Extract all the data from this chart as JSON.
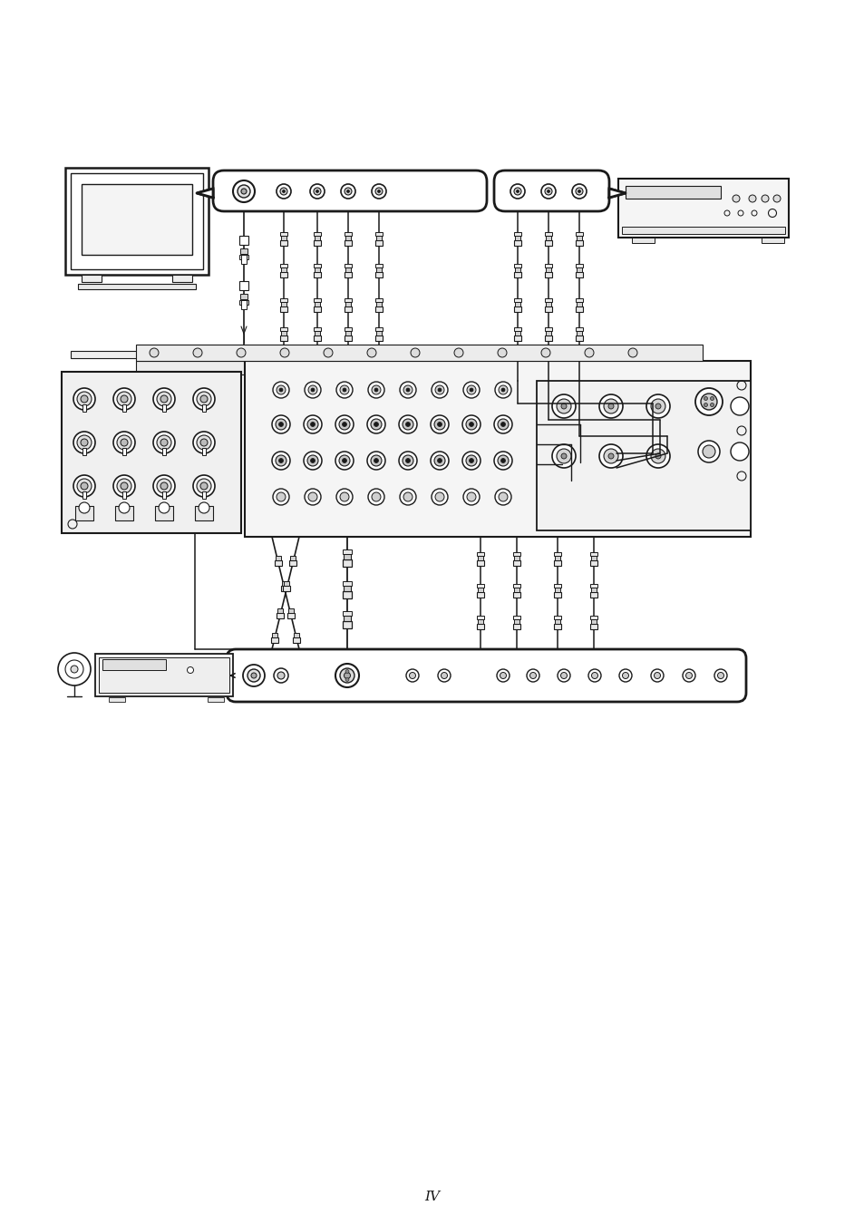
{
  "bg_color": "#ffffff",
  "line_color": "#1a1a1a",
  "page_number": "IV",
  "lw": 1.0,
  "figsize": [
    9.54,
    13.51
  ],
  "dpi": 100
}
